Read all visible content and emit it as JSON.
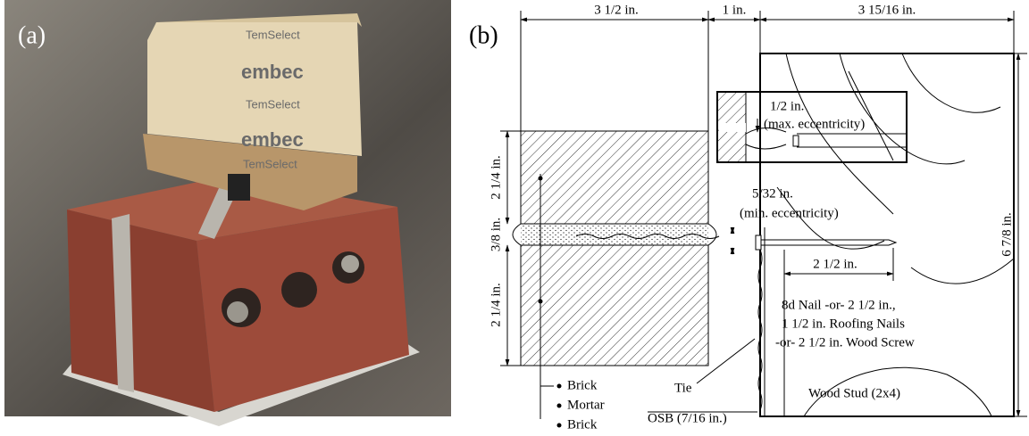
{
  "photo": {
    "label": "(a)",
    "wood_markings": [
      "TemSelect",
      "embec",
      "TemSelect",
      "embec",
      "TemSelect"
    ]
  },
  "diagram": {
    "label": "(b)",
    "dimensions": [
      "3 1/2 in.",
      "1 in.",
      "3 15/16 in.",
      "2 1/4 in.",
      "3/8 in.",
      "2 1/4 in.",
      "6 7/8 in.",
      "2 1/2 in."
    ],
    "annotations": [
      "1/2 in.",
      "(max. eccentricity)",
      "5/32 in.",
      "(min. eccentricity)",
      "8d Nail -or- 2 1/2 in.,",
      "1 1/2 in. Roofing Nails",
      "-or- 2 1/2 in. Wood Screw",
      "Wood Stud (2x4)",
      "Tie",
      "OSB (7/16 in.)"
    ],
    "legend": [
      "Brick",
      "Mortar",
      "Brick"
    ]
  }
}
